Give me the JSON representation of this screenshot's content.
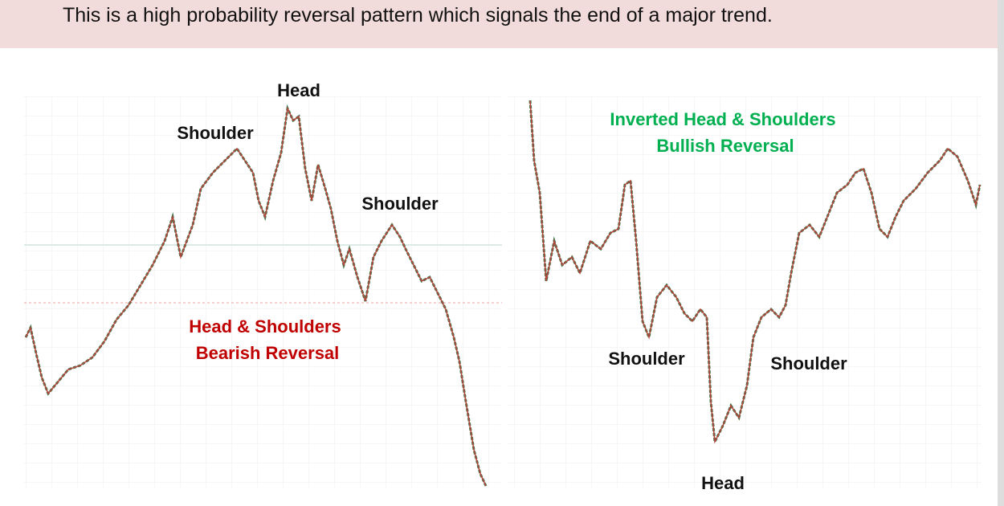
{
  "header": {
    "text": "This is a high probability reversal pattern which signals the end of a major trend."
  },
  "left_chart": {
    "head": "Head",
    "left_shoulder": "Shoulder",
    "right_shoulder": "Shoulder",
    "title_line1": "Head & Shoulders",
    "title_line2": "Bearish Reversal"
  },
  "right_chart": {
    "head": "Head",
    "left_shoulder": "Shoulder",
    "right_shoulder": "Shoulder",
    "title_line1": "Inverted Head & Shoulders",
    "title_line2": "Bullish Reversal"
  }
}
